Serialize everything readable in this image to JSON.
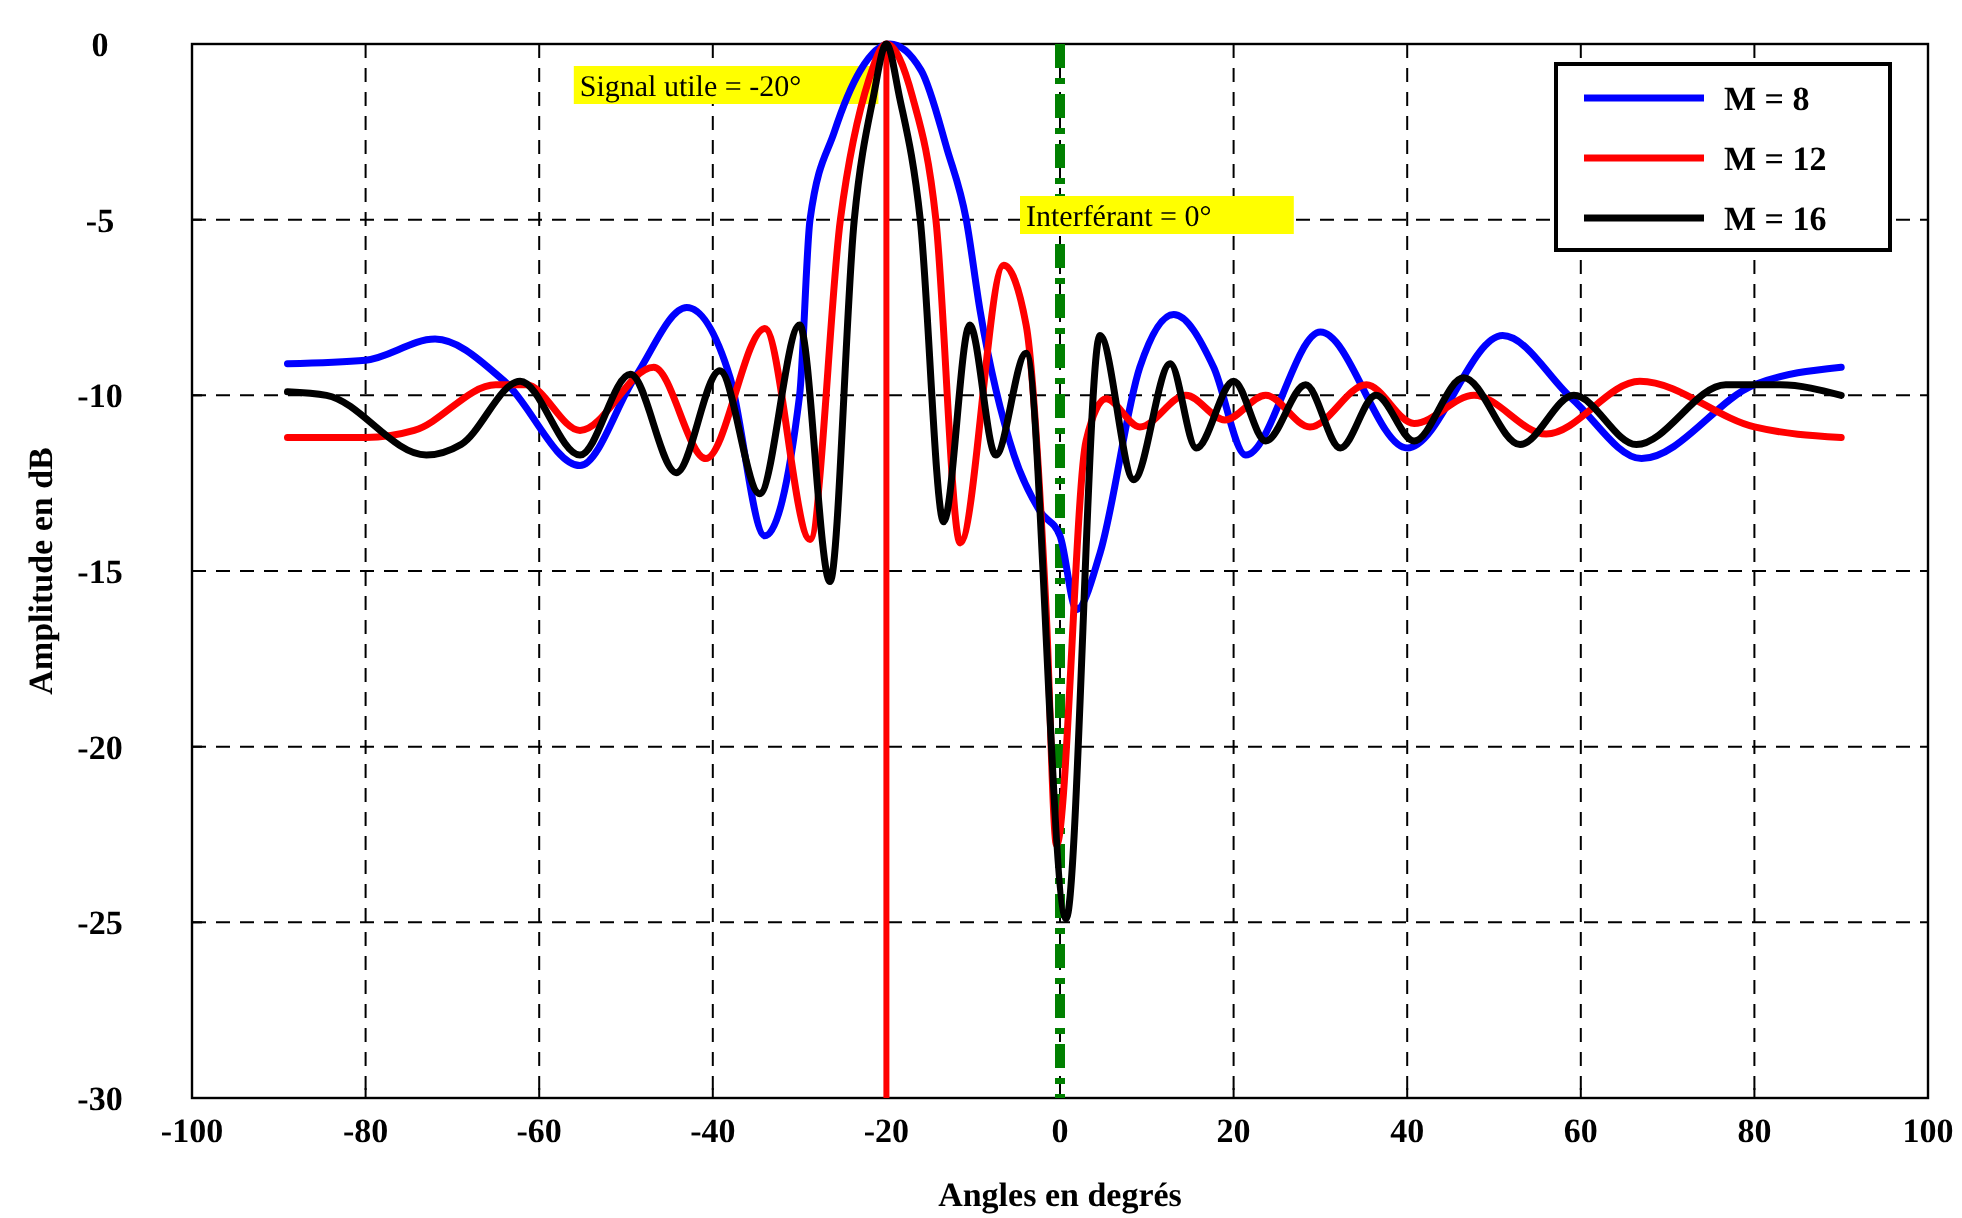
{
  "chart_data": {
    "type": "line",
    "xlabel": "Angles en degrés",
    "ylabel": "Amplitude en dB",
    "xlim": [
      -100,
      100
    ],
    "xticks": [
      -100,
      -80,
      -60,
      -40,
      -20,
      0,
      20,
      40,
      60,
      80,
      100
    ],
    "ylim": [
      -30,
      0
    ],
    "yticks": [
      -30,
      -25,
      -20,
      -15,
      -10,
      -5,
      0
    ],
    "grid": true,
    "legend": "top right",
    "marker": "none",
    "line_style": "solid",
    "ref_lines": [
      {
        "axis": "x",
        "value": -20,
        "label": "Signal utile = -20°",
        "color": "#ff0000",
        "line_style": "solid"
      },
      {
        "axis": "x",
        "value": 0,
        "label": "Interférant =  0°",
        "color": "#008000",
        "line_style": "dashed"
      }
    ],
    "series": [
      {
        "name": "M = 8",
        "color": "#0000ff",
        "x": [
          -89,
          -80,
          -72,
          -64,
          -55.3,
          -49,
          -43,
          -38,
          -34,
          -30,
          -28.8,
          -26,
          -23,
          -19.6,
          -16,
          -13,
          -10.8,
          -9.2,
          -5.3,
          -2.3,
          0,
          1.9,
          4.6,
          9.2,
          13.1,
          17.7,
          21.4,
          30,
          40,
          51,
          59,
          67,
          80,
          90
        ],
        "values": [
          -9.1,
          -9.0,
          -8.4,
          -9.6,
          -12.0,
          -9.5,
          -7.5,
          -9.5,
          -14.0,
          -10.0,
          -5.0,
          -2.5,
          -0.75,
          0,
          -0.75,
          -3.0,
          -5.0,
          -7.6,
          -11.7,
          -13.3,
          -14.0,
          -16.1,
          -14.5,
          -9.2,
          -7.7,
          -9.2,
          -11.7,
          -8.2,
          -11.5,
          -8.3,
          -10.1,
          -11.8,
          -9.7,
          -9.2
        ]
      },
      {
        "name": "M = 12",
        "color": "#ff0000",
        "x": [
          -89,
          -80,
          -74.4,
          -65,
          -61.5,
          -55.3,
          -46.8,
          -40.8,
          -34,
          -28.8,
          -25.3,
          -22,
          -20,
          -17,
          -14.3,
          -11.5,
          -6.5,
          -3.9,
          -1.6,
          -0.4,
          3,
          5.3,
          9.2,
          14.5,
          19,
          23.7,
          28.8,
          35.3,
          40.8,
          47.7,
          56,
          66.8,
          80,
          90
        ],
        "values": [
          -11.2,
          -11.2,
          -11.0,
          -9.7,
          -9.7,
          -11.0,
          -9.2,
          -11.8,
          -8.1,
          -14.1,
          -5.0,
          -1.0,
          0,
          -1.5,
          -5.0,
          -14.2,
          -6.3,
          -8.0,
          -16.1,
          -22.8,
          -11.3,
          -10.1,
          -10.9,
          -10.0,
          -10.7,
          -10.0,
          -10.9,
          -9.7,
          -10.8,
          -10.0,
          -11.1,
          -9.6,
          -10.9,
          -11.2
        ]
      },
      {
        "name": "M = 16",
        "color": "#000000",
        "x": [
          -89,
          -84.5,
          -73,
          -69,
          -62.2,
          -55.3,
          -49.5,
          -44.2,
          -39.2,
          -34.6,
          -30,
          -26.5,
          -23.7,
          -21.5,
          -20,
          -18.5,
          -16.1,
          -13.4,
          -10.4,
          -7.4,
          -3.9,
          0.7,
          4.6,
          8.5,
          12.7,
          15.7,
          20,
          23.7,
          28.3,
          32.3,
          36.4,
          40.8,
          46.5,
          53,
          59.2,
          66.4,
          76.7,
          83,
          90
        ],
        "values": [
          -9.9,
          -10.0,
          -11.7,
          -11.4,
          -9.6,
          -11.7,
          -9.4,
          -12.2,
          -9.3,
          -12.8,
          -8.0,
          -15.3,
          -5.0,
          -1.5,
          0,
          -1.5,
          -5.0,
          -13.6,
          -8.0,
          -11.7,
          -8.8,
          -24.9,
          -8.3,
          -12.4,
          -9.1,
          -11.5,
          -9.6,
          -11.3,
          -9.7,
          -11.5,
          -10.0,
          -11.3,
          -9.5,
          -11.4,
          -10.0,
          -11.4,
          -9.7,
          -9.7,
          -10.0
        ]
      }
    ]
  }
}
